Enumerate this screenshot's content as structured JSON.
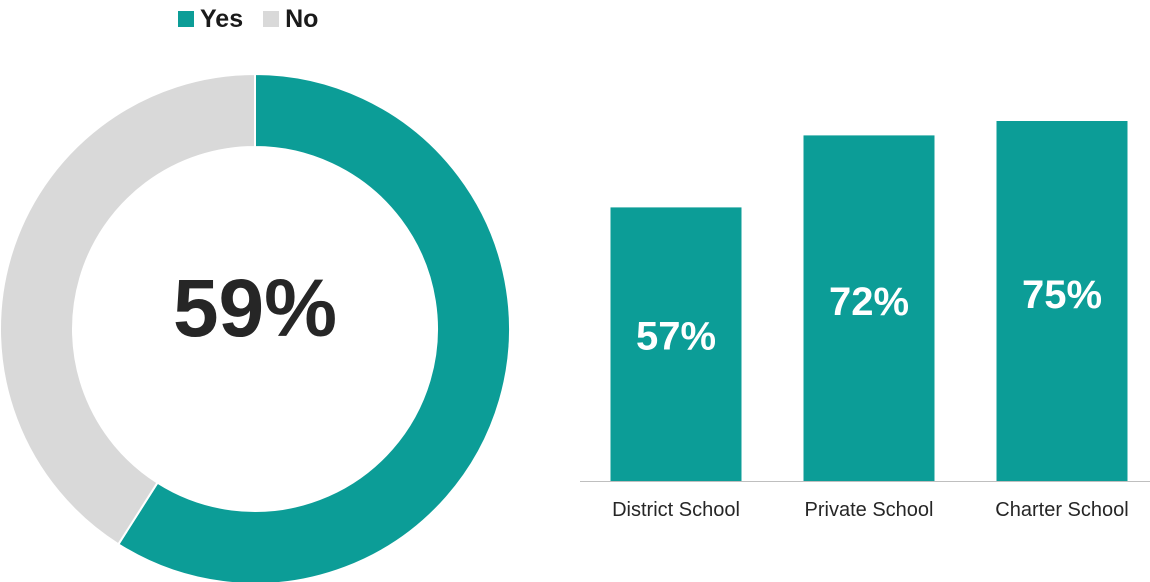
{
  "colors": {
    "yes": "#0c9d97",
    "no": "#d9d9d9",
    "center_text": "#262626",
    "bar_label": "#ffffff",
    "axis": "#bfbfbf",
    "tick_text": "#262626"
  },
  "chart_data": [
    {
      "type": "pie",
      "subtype": "donut",
      "legend": [
        "Yes",
        "No"
      ],
      "legend_position": "top-left",
      "slices": [
        {
          "label": "Yes",
          "value": 59
        },
        {
          "label": "No",
          "value": 41
        }
      ],
      "center_label": "59%"
    },
    {
      "type": "bar",
      "categories": [
        "District School",
        "Private School",
        "Charter School"
      ],
      "values": [
        57,
        72,
        75
      ],
      "data_labels": [
        "57%",
        "72%",
        "75%"
      ],
      "grid": false
    }
  ]
}
